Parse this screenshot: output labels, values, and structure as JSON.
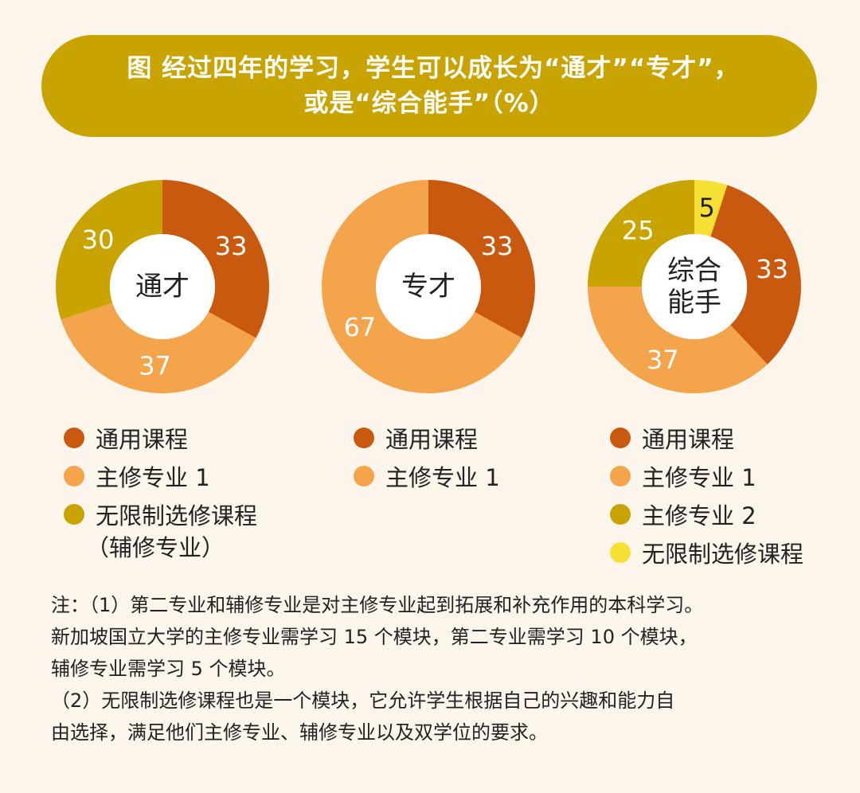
{
  "title": {
    "line1": "图  经过四年的学习，学生可以成长为“通才”“专才”，",
    "line2": "或是“综合能手”（%）"
  },
  "colors": {
    "general": "#c9590e",
    "major1": "#f4a44a",
    "major2": "#c9a400",
    "elective": "#f7e034",
    "banner": "#c9a400",
    "background": "#fbf5ec"
  },
  "chart_data": [
    {
      "type": "pie",
      "donut": true,
      "center_label": "通才",
      "slices": [
        {
          "label": "通用课程",
          "value": 33,
          "color": "#c9590e"
        },
        {
          "label": "主修专业 1",
          "value": 37,
          "color": "#f4a44a"
        },
        {
          "label": "无限制选修课程",
          "value": 30,
          "color": "#c9a400"
        }
      ]
    },
    {
      "type": "pie",
      "donut": true,
      "center_label": "专才",
      "slices": [
        {
          "label": "通用课程",
          "value": 33,
          "color": "#c9590e"
        },
        {
          "label": "主修专业 1",
          "value": 67,
          "color": "#f4a44a"
        }
      ]
    },
    {
      "type": "pie",
      "donut": true,
      "center_label": "综合能手",
      "center_lines": [
        "综合",
        "能手"
      ],
      "slices": [
        {
          "label": "无限制选修课程",
          "value": 5,
          "color": "#f7e034"
        },
        {
          "label": "通用课程",
          "value": 33,
          "color": "#c9590e"
        },
        {
          "label": "主修专业 1",
          "value": 37,
          "color": "#f4a44a"
        },
        {
          "label": "主修专业 2",
          "value": 25,
          "color": "#c9a400"
        }
      ]
    }
  ],
  "legends": [
    {
      "items": [
        {
          "label": "通用课程",
          "color": "#c9590e"
        },
        {
          "label": "主修专业 1",
          "color": "#f4a44a"
        },
        {
          "label": "无限制选修课程",
          "color": "#c9a400",
          "sublabel": "（辅修专业）"
        }
      ]
    },
    {
      "items": [
        {
          "label": "通用课程",
          "color": "#c9590e"
        },
        {
          "label": "主修专业 1",
          "color": "#f4a44a"
        }
      ]
    },
    {
      "items": [
        {
          "label": "通用课程",
          "color": "#c9590e"
        },
        {
          "label": "主修专业 1",
          "color": "#f4a44a"
        },
        {
          "label": "主修专业 2",
          "color": "#c9a400"
        },
        {
          "label": "无限制选修课程",
          "color": "#f7e034"
        }
      ]
    }
  ],
  "notes": {
    "p1_line1": "注：（1）第二专业和辅修专业是对主修专业起到拓展和补充作用的本科学习。",
    "p1_line2": "新加坡国立大学的主修专业需学习 15 个模块，第二专业需学习 10 个模块，",
    "p1_line3": "辅修专业需学习 5 个模块。",
    "p2_line1": "（2）无限制选修课程也是一个模块，它允许学生根据自己的兴趣和能力自",
    "p2_line2": "由选择，满足他们主修专业、辅修专业以及双学位的要求。"
  }
}
